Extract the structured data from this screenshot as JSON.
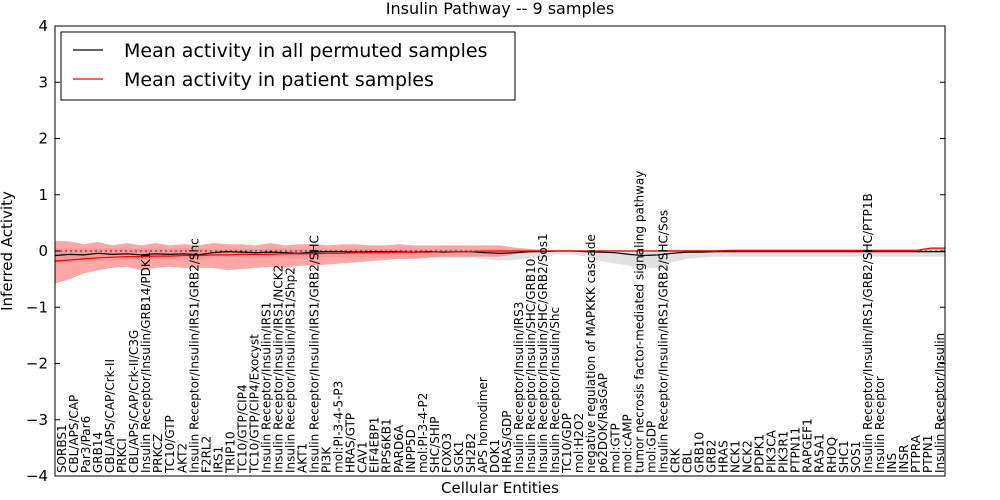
{
  "chart_data": {
    "type": "line",
    "title": "Insulin Pathway -- 9 samples",
    "xlabel": "Cellular Entities",
    "ylabel": "Inferred Activity",
    "ylim": [
      -4,
      4
    ],
    "yticks": [
      -4,
      -3,
      -2,
      -1,
      0,
      1,
      2,
      3,
      4
    ],
    "xlim": [
      0,
      124
    ],
    "grid": false,
    "legend_location": "top-left",
    "categories": [
      "SORBS1",
      "CBL/APS/CAP",
      "Par3/Par6",
      "GRB14",
      "CBL/APS/CAP/Crk-II",
      "PRKCI",
      "CBL/APS/CAP/Crk-II/C3G",
      "Insulin Receptor/Insulin/GRB14/PDK1",
      "PRKCZ",
      "TC10/GTP",
      "AKT2",
      "Insulin Receptor/Insulin/IRS1/GRB2/Shc",
      "F2RL2",
      "IRS1",
      "TRIP10",
      "TC10/GTP/CIP4",
      "TC10/GTP/CIP4/Exocyst",
      "Insulin Receptor/Insulin/IRS1",
      "Insulin Receptor/Insulin/IRS1/NCK2",
      "Insulin Receptor/Insulin/IRS1/Shp2",
      "AKT1",
      "Insulin Receptor/Insulin/IRS1/GRB2/SHC",
      "PI3K",
      "mol:PI-3-4-5-P3",
      "HRAS/GTP",
      "CAV1",
      "EIF4EBP1",
      "RPS6KB1",
      "PARD6A",
      "INPP5D",
      "mol:PI-3-4-P2",
      "SHC/SHIP",
      "FOXO3",
      "SGK1",
      "SH2B2",
      "APS homodimer",
      "DOK1",
      "HRAS/GDP",
      "Insulin Receptor/Insulin/IRS3",
      "Insulin Receptor/Insulin/SHC/GRB10",
      "Insulin Receptor/Insulin/SHC/GRB2/Sos1",
      "Insulin Receptor/Insulin/Shc",
      "TC10/GDP",
      "mol:H2O2",
      "negative regulation of MAPKKK cascade",
      "p62DOK/RasGAP",
      "mol:GTP",
      "mol:cAMP",
      "tumor necrosis factor-mediated signaling pathway",
      "mol:GDP",
      "Insulin Receptor/Insulin/IRS1/GRB2/SHC/Sos",
      "CRK",
      "CBL",
      "GRB10",
      "GRB2",
      "HRAS",
      "NCK1",
      "NCK2",
      "PDPK1",
      "PIK3CA",
      "PIK3R1",
      "PTPN11",
      "RAPGEF1",
      "RASA1",
      "RHOQ",
      "SHC1",
      "SOS1",
      "Insulin Receptor/Insulin/IRS1/GRB2/SHC/PTP1B",
      "Insulin Receptor",
      "INS",
      "INSR",
      "PTPRA",
      "PTPN1",
      "Insulin Receptor/Insulin"
    ],
    "series": [
      {
        "name": "Mean activity in all permuted samples",
        "color": "#000000",
        "x": [
          0,
          2,
          4,
          6,
          8,
          10,
          12,
          14,
          16,
          18,
          20,
          22,
          24,
          26,
          28,
          30,
          32,
          34,
          36,
          38,
          40,
          42,
          44,
          46,
          48,
          50,
          52,
          54,
          56,
          58,
          60,
          62,
          64,
          66,
          68,
          70,
          72,
          74,
          76,
          78,
          80,
          82,
          84,
          86,
          88,
          90,
          92,
          94,
          96,
          98,
          100,
          102,
          104,
          106,
          108,
          110,
          112,
          114,
          116,
          118,
          120,
          122,
          124
        ],
        "values": [
          -0.08,
          -0.06,
          -0.07,
          -0.04,
          -0.06,
          -0.05,
          -0.07,
          -0.05,
          -0.06,
          -0.05,
          -0.07,
          -0.03,
          -0.01,
          -0.02,
          -0.03,
          -0.02,
          -0.03,
          -0.04,
          -0.02,
          -0.01,
          -0.01,
          -0.02,
          -0.01,
          -0.01,
          -0.01,
          -0.02,
          -0.01,
          -0.02,
          -0.01,
          -0.01,
          -0.03,
          -0.04,
          -0.03,
          -0.01,
          -0.01,
          0.0,
          0.0,
          -0.01,
          -0.02,
          -0.03,
          -0.06,
          -0.08,
          -0.07,
          -0.04,
          -0.02,
          -0.02,
          -0.01,
          -0.01,
          -0.01,
          -0.01,
          -0.01,
          -0.01,
          -0.01,
          -0.01,
          -0.01,
          -0.01,
          -0.01,
          -0.01,
          -0.01,
          -0.01,
          -0.01,
          -0.01,
          -0.01
        ],
        "band_upper": [
          0.05,
          0.05,
          0.05,
          0.05,
          0.05,
          0.05,
          0.05,
          0.05,
          0.05,
          0.05,
          0.05,
          0.04,
          0.04,
          0.04,
          0.04,
          0.04,
          0.04,
          0.04,
          0.04,
          0.04,
          0.04,
          0.04,
          0.04,
          0.04,
          0.04,
          0.03,
          0.03,
          0.03,
          0.03,
          0.03,
          0.03,
          0.03,
          0.03,
          0.03,
          0.03,
          0.02,
          0.02,
          0.02,
          0.02,
          0.02,
          0.02,
          0.02,
          0.02,
          0.02,
          0.02,
          0.02,
          0.02,
          0.02,
          0.02,
          0.02,
          0.02,
          0.02,
          0.02,
          0.02,
          0.02,
          0.02,
          0.02,
          0.02,
          0.02,
          0.02,
          0.02,
          0.02,
          0.02
        ],
        "band_lower": [
          -0.22,
          -0.2,
          -0.18,
          -0.16,
          -0.18,
          -0.15,
          -0.17,
          -0.15,
          -0.16,
          -0.15,
          -0.17,
          -0.12,
          -0.1,
          -0.12,
          -0.13,
          -0.12,
          -0.12,
          -0.14,
          -0.12,
          -0.1,
          -0.12,
          -0.12,
          -0.12,
          -0.12,
          -0.12,
          -0.12,
          -0.12,
          -0.12,
          -0.12,
          -0.12,
          -0.15,
          -0.17,
          -0.16,
          -0.13,
          -0.12,
          -0.06,
          -0.06,
          -0.1,
          -0.18,
          -0.22,
          -0.26,
          -0.3,
          -0.3,
          -0.2,
          -0.14,
          -0.12,
          -0.1,
          -0.1,
          -0.1,
          -0.1,
          -0.1,
          -0.1,
          -0.1,
          -0.1,
          -0.1,
          -0.1,
          -0.1,
          -0.1,
          -0.1,
          -0.1,
          -0.1,
          -0.1,
          -0.1
        ]
      },
      {
        "name": "Mean activity in patient samples",
        "color": "#ff0000",
        "x": [
          0,
          2,
          4,
          6,
          8,
          10,
          12,
          14,
          16,
          18,
          20,
          22,
          24,
          26,
          28,
          30,
          32,
          34,
          36,
          38,
          40,
          42,
          44,
          46,
          48,
          50,
          52,
          54,
          56,
          58,
          60,
          62,
          64,
          66,
          68,
          70,
          72,
          74,
          76,
          78,
          80,
          82,
          84,
          86,
          88,
          90,
          92,
          94,
          96,
          98,
          100,
          102,
          104,
          106,
          108,
          110,
          112,
          114,
          116,
          118,
          120,
          122,
          124
        ],
        "values": [
          -0.18,
          -0.16,
          -0.14,
          -0.12,
          -0.11,
          -0.1,
          -0.1,
          -0.09,
          -0.09,
          -0.08,
          -0.08,
          -0.07,
          -0.07,
          -0.06,
          -0.06,
          -0.06,
          -0.05,
          -0.05,
          -0.05,
          -0.04,
          -0.04,
          -0.03,
          -0.03,
          -0.03,
          -0.02,
          -0.02,
          -0.02,
          -0.01,
          -0.01,
          -0.01,
          0.0,
          0.0,
          0.0,
          0.0,
          0.0,
          0.0,
          0.0,
          0.0,
          0.0,
          0.0,
          0.0,
          0.0,
          0.0,
          0.0,
          0.0,
          0.0,
          0.0,
          0.01,
          0.01,
          0.01,
          0.01,
          0.01,
          0.01,
          0.01,
          0.01,
          0.01,
          0.01,
          0.01,
          0.01,
          0.01,
          0.01,
          0.05,
          0.05
        ],
        "band_upper": [
          0.18,
          0.17,
          0.12,
          0.16,
          0.1,
          0.14,
          0.1,
          0.14,
          0.1,
          0.12,
          0.1,
          0.14,
          0.12,
          0.12,
          0.1,
          0.14,
          0.1,
          0.12,
          0.12,
          0.1,
          0.12,
          0.12,
          0.1,
          0.1,
          0.12,
          0.1,
          0.1,
          0.1,
          0.1,
          0.1,
          0.1,
          0.1,
          0.06,
          0.04,
          0.02,
          0.01,
          0.01,
          0.01,
          0.01,
          0.01,
          0.01,
          0.01,
          0.01,
          0.02,
          0.02,
          0.02,
          0.02,
          0.02,
          0.02,
          0.02,
          0.02,
          0.02,
          0.02,
          0.02,
          0.02,
          0.02,
          0.02,
          0.02,
          0.02,
          0.02,
          0.02,
          0.07,
          0.07
        ],
        "band_lower": [
          -0.58,
          -0.5,
          -0.4,
          -0.34,
          -0.3,
          -0.28,
          -0.34,
          -0.3,
          -0.28,
          -0.3,
          -0.3,
          -0.3,
          -0.34,
          -0.32,
          -0.3,
          -0.28,
          -0.3,
          -0.26,
          -0.26,
          -0.24,
          -0.22,
          -0.2,
          -0.18,
          -0.16,
          -0.14,
          -0.14,
          -0.12,
          -0.1,
          -0.1,
          -0.1,
          -0.1,
          -0.1,
          -0.06,
          -0.03,
          -0.02,
          -0.01,
          -0.01,
          -0.01,
          -0.01,
          -0.01,
          -0.01,
          -0.01,
          -0.01,
          -0.02,
          -0.02,
          -0.02,
          -0.01,
          -0.01,
          -0.01,
          -0.01,
          -0.01,
          -0.01,
          -0.01,
          -0.01,
          -0.01,
          -0.01,
          -0.01,
          -0.01,
          -0.01,
          -0.01,
          -0.01,
          0.02,
          0.02
        ]
      }
    ],
    "reference_lines": [
      0
    ]
  }
}
